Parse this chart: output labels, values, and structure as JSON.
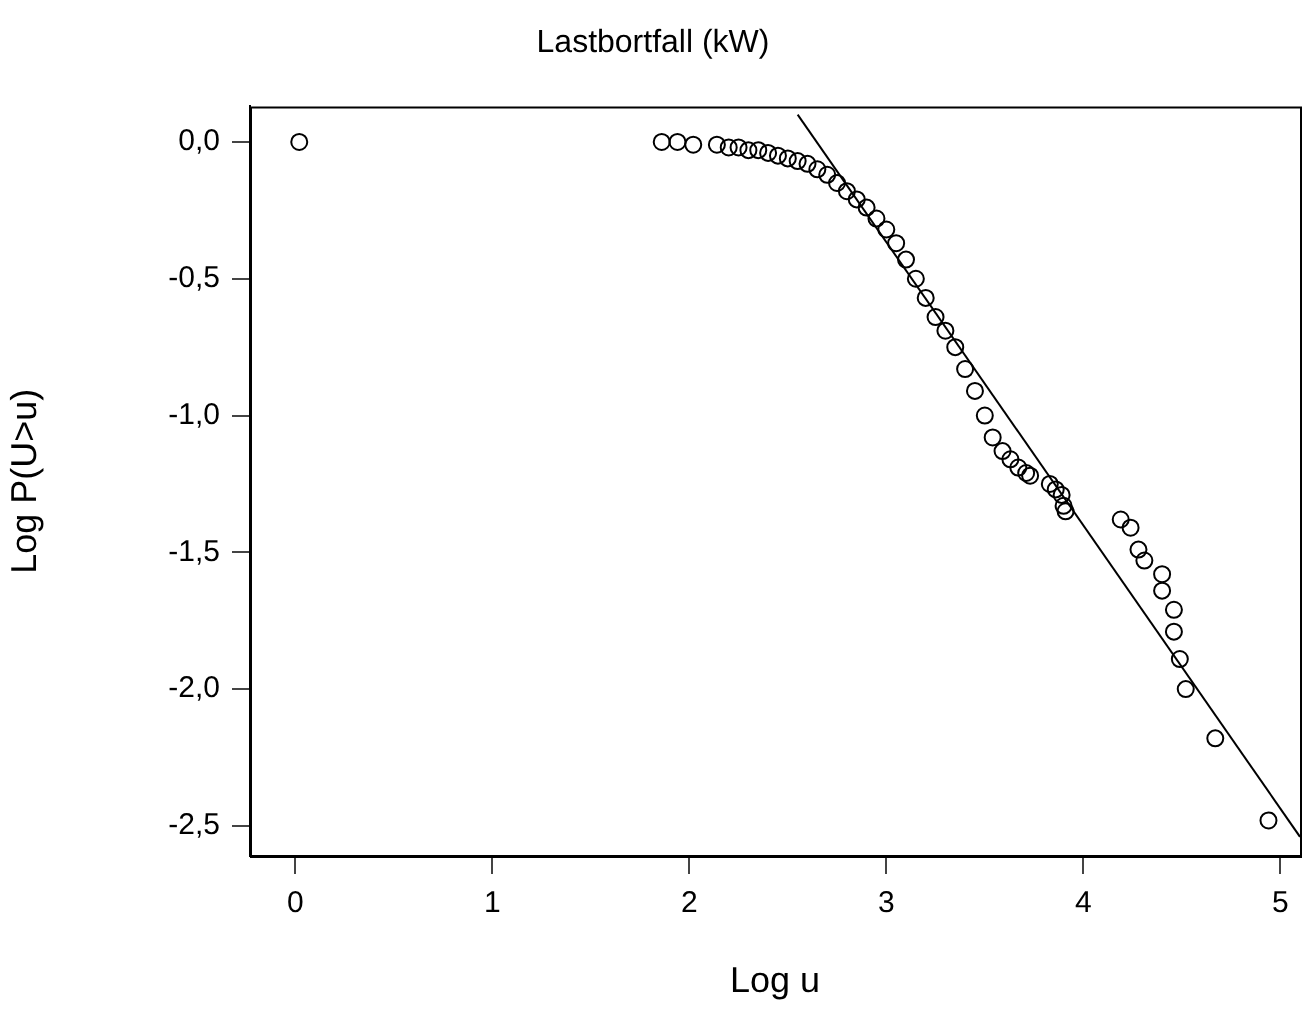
{
  "chart_data": {
    "type": "scatter",
    "title": "Lastbortfall (kW)",
    "xlabel": "Log u",
    "ylabel": "Log P(U>u)",
    "xlim": [
      -0.23,
      5.1
    ],
    "ylim": [
      -2.61,
      0.13
    ],
    "xticks": [
      0,
      1,
      2,
      3,
      4,
      5
    ],
    "yticks": [
      {
        "value": 0,
        "label": "0,0"
      },
      {
        "value": -0.5,
        "label": "-0,5"
      },
      {
        "value": -1,
        "label": "-1,0"
      },
      {
        "value": -1.5,
        "label": "-1,5"
      },
      {
        "value": -2,
        "label": "-2,0"
      },
      {
        "value": -2.5,
        "label": "-2,5"
      }
    ],
    "grid": false,
    "legend": false,
    "series": [
      {
        "marker": "circle",
        "color": "#000000",
        "x": [
          0.02,
          1.86,
          1.94,
          2.02,
          2.14,
          2.2,
          2.25,
          2.3,
          2.35,
          2.4,
          2.45,
          2.5,
          2.55,
          2.6,
          2.65,
          2.7,
          2.75,
          2.8,
          2.85,
          2.9,
          2.95,
          3.0,
          3.05,
          3.1,
          3.15,
          3.2,
          3.25,
          3.3,
          3.35,
          3.4,
          3.45,
          3.5,
          3.54,
          3.59,
          3.63,
          3.67,
          3.71,
          3.73,
          3.83,
          3.86,
          3.89,
          3.9,
          3.91,
          4.19,
          4.24,
          4.28,
          4.31,
          4.4,
          4.4,
          4.46,
          4.46,
          4.49,
          4.52,
          4.67,
          4.94
        ],
        "values": [
          0.0,
          0.0,
          0.0,
          -0.01,
          -0.01,
          -0.02,
          -0.02,
          -0.03,
          -0.03,
          -0.04,
          -0.05,
          -0.06,
          -0.07,
          -0.08,
          -0.1,
          -0.12,
          -0.15,
          -0.18,
          -0.21,
          -0.24,
          -0.28,
          -0.32,
          -0.37,
          -0.43,
          -0.5,
          -0.57,
          -0.64,
          -0.69,
          -0.75,
          -0.83,
          -0.91,
          -1.0,
          -1.08,
          -1.13,
          -1.16,
          -1.19,
          -1.21,
          -1.22,
          -1.25,
          -1.27,
          -1.29,
          -1.33,
          -1.35,
          -1.38,
          -1.41,
          -1.49,
          -1.53,
          -1.58,
          -1.64,
          -1.71,
          -1.79,
          -1.89,
          -2.0,
          -2.18,
          -2.48
        ]
      },
      {
        "type": "line",
        "color": "#000000",
        "x": [
          2.55,
          5.1
        ],
        "values": [
          0.1,
          -2.54
        ]
      }
    ]
  }
}
